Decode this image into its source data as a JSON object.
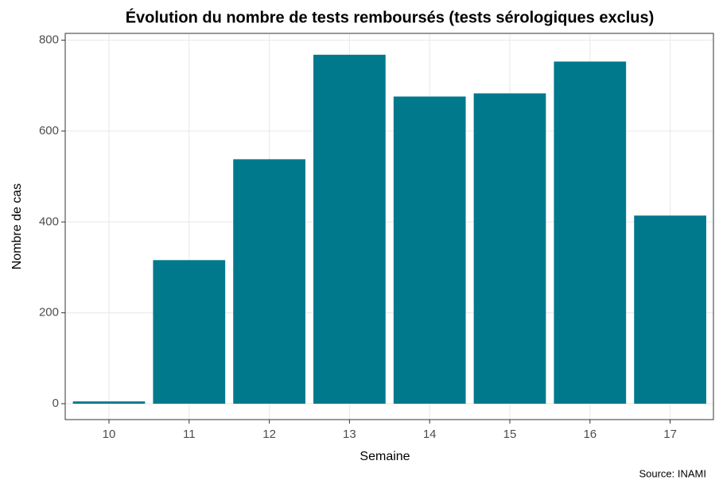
{
  "chart_data": {
    "type": "bar",
    "title": "Évolution du nombre de tests remboursés (tests sérologiques exclus)",
    "x_label": "Semaine",
    "y_label": "Nombre de cas",
    "caption": "Source: INAMI",
    "categories": [
      "10",
      "11",
      "12",
      "13",
      "14",
      "15",
      "16",
      "17"
    ],
    "values": [
      5,
      316,
      538,
      768,
      676,
      683,
      753,
      414
    ],
    "color": "#00798c",
    "ylim": [
      -35,
      815
    ],
    "yticks": [
      0,
      200,
      400,
      600,
      800
    ],
    "grid": true
  }
}
